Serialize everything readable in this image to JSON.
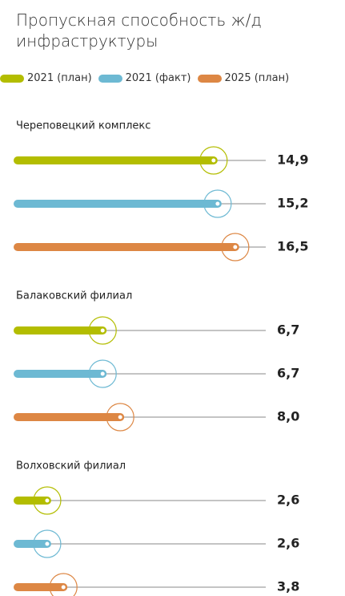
{
  "chart_data": {
    "type": "bar",
    "title": "Пропускная способность ж/д инфраструктуры",
    "categories": [
      "Череповецкий комплекс",
      "Балаковский филиал",
      "Волховский филиал"
    ],
    "series": [
      {
        "name": "2021 (план)",
        "color": "#b3bd00",
        "values": [
          14.9,
          6.7,
          2.6
        ],
        "value_labels": [
          "14,9",
          "6,7",
          "2,6"
        ]
      },
      {
        "name": "2021 (факт)",
        "color": "#6db9d3",
        "values": [
          15.2,
          6.7,
          2.6
        ],
        "value_labels": [
          "15,2",
          "6,7",
          "2,6"
        ]
      },
      {
        "name": "2025 (план)",
        "color": "#dd8744",
        "values": [
          16.5,
          8.0,
          3.8
        ],
        "value_labels": [
          "16,5",
          "8,0",
          "3,8"
        ]
      }
    ]
  }
}
